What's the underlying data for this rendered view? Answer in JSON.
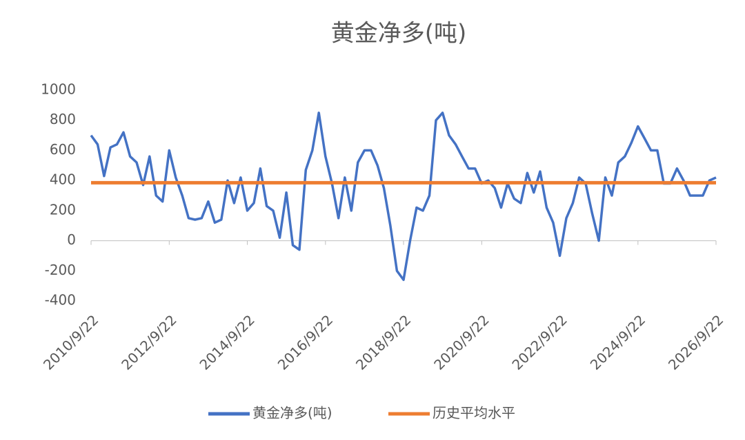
{
  "chart_data": {
    "type": "line",
    "title": "黄金净多(吨)",
    "series": [
      {
        "name": "黄金净多(吨)",
        "color": "#4472c4",
        "x": [
          "2010/9/22",
          "2010/11/22",
          "2011/1/22",
          "2011/3/22",
          "2011/5/22",
          "2011/7/22",
          "2011/9/22",
          "2011/11/22",
          "2012/1/22",
          "2012/3/22",
          "2012/5/22",
          "2012/7/22",
          "2012/9/22",
          "2012/11/22",
          "2013/1/22",
          "2013/3/22",
          "2013/5/22",
          "2013/7/22",
          "2013/9/22",
          "2013/11/22",
          "2014/1/22",
          "2014/3/22",
          "2014/5/22",
          "2014/7/22",
          "2014/9/22",
          "2014/11/22",
          "2015/1/22",
          "2015/3/22",
          "2015/5/22",
          "2015/7/22",
          "2015/9/22",
          "2015/11/22",
          "2016/1/22",
          "2016/3/22",
          "2016/5/22",
          "2016/7/22",
          "2016/9/22",
          "2016/11/22",
          "2017/1/22",
          "2017/3/22",
          "2017/5/22",
          "2017/7/22",
          "2017/9/22",
          "2017/11/22",
          "2018/1/22",
          "2018/3/22",
          "2018/5/22",
          "2018/7/22",
          "2018/9/22",
          "2018/11/22",
          "2019/1/22",
          "2019/3/22",
          "2019/5/22",
          "2019/7/22",
          "2019/9/22",
          "2019/11/22",
          "2020/1/22",
          "2020/3/22",
          "2020/5/22",
          "2020/7/22",
          "2020/9/22",
          "2020/11/22",
          "2021/1/22",
          "2021/3/22",
          "2021/5/22",
          "2021/7/22",
          "2021/9/22",
          "2021/11/22",
          "2022/1/22",
          "2022/3/22",
          "2022/5/22",
          "2022/7/22",
          "2022/9/22",
          "2022/11/22",
          "2023/1/22",
          "2023/3/22",
          "2023/5/22",
          "2023/7/22",
          "2023/9/22",
          "2023/11/22",
          "2024/1/22",
          "2024/3/22",
          "2024/5/22",
          "2024/7/22",
          "2024/9/22",
          "2024/11/22",
          "2025/1/22",
          "2025/3/22",
          "2025/5/22",
          "2025/7/22",
          "2025/9/22",
          "2025/11/22",
          "2026/1/22",
          "2026/3/22",
          "2026/5/22",
          "2026/7/22",
          "2026/9/22"
        ],
        "values": [
          700,
          640,
          430,
          620,
          640,
          720,
          560,
          520,
          370,
          560,
          300,
          260,
          600,
          420,
          300,
          150,
          140,
          150,
          260,
          120,
          140,
          400,
          250,
          420,
          200,
          250,
          480,
          230,
          200,
          20,
          320,
          -30,
          -60,
          470,
          600,
          850,
          560,
          380,
          150,
          420,
          200,
          520,
          600,
          600,
          500,
          350,
          100,
          -200,
          -260,
          0,
          220,
          200,
          300,
          800,
          850,
          700,
          640,
          560,
          480,
          480,
          380,
          400,
          350,
          220,
          380,
          280,
          250,
          450,
          320,
          460,
          220,
          120,
          -100,
          150,
          250,
          420,
          380,
          180,
          0,
          420,
          300,
          520,
          560,
          650,
          760,
          680,
          600,
          600,
          380,
          380,
          480,
          400,
          300,
          300,
          300,
          400,
          420
        ]
      },
      {
        "name": "历史平均水平",
        "color": "#ed7d31",
        "x": [
          "2010/9/22",
          "2026/9/22"
        ],
        "values": [
          385,
          385
        ]
      }
    ],
    "xlim": [
      "2010/9/22",
      "2026/9/22"
    ],
    "xticks": [
      "2010/9/22",
      "2012/9/22",
      "2014/9/22",
      "2016/9/22",
      "2018/9/22",
      "2020/9/22",
      "2022/9/22",
      "2024/9/22",
      "2026/9/22"
    ],
    "ylim": [
      -400,
      1000
    ],
    "yticks": [
      -400,
      -200,
      0,
      200,
      400,
      600,
      800,
      1000
    ],
    "grid": false,
    "legend": "bottom"
  }
}
